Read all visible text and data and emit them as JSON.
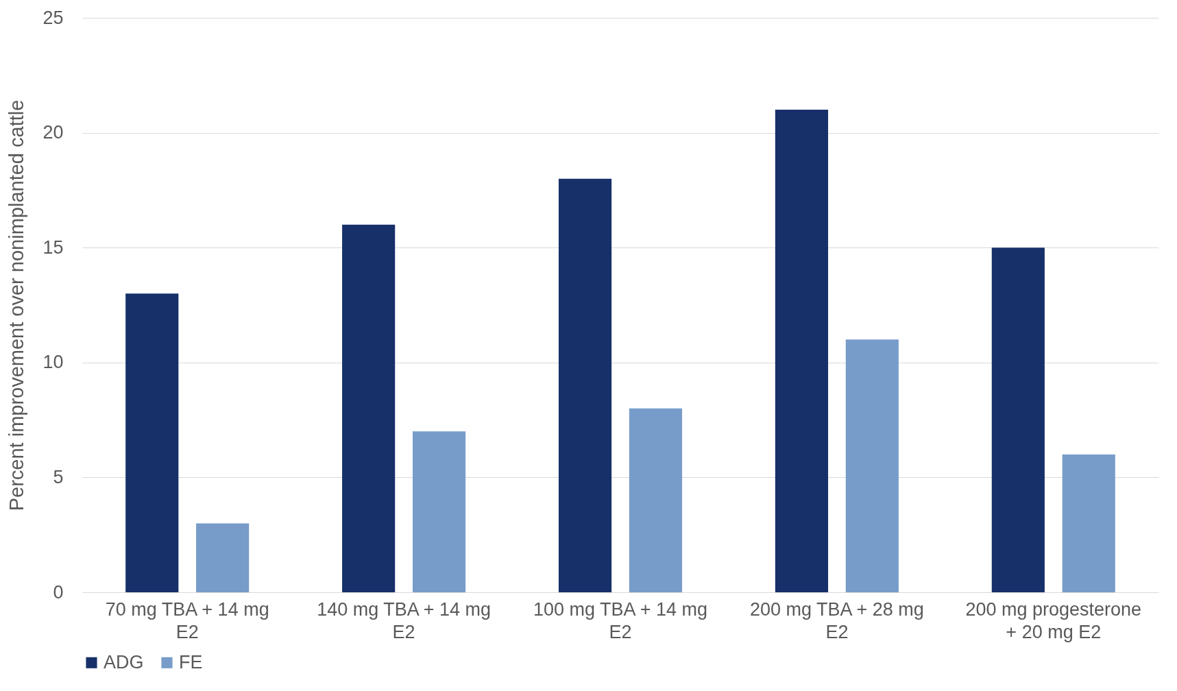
{
  "chart_data": {
    "type": "bar",
    "ylabel": "Percent improvement over nonimplanted cattle",
    "categories": [
      "70 mg TBA + 14 mg E2",
      "140 mg TBA  + 14 mg E2",
      "100 mg TBA + 14 mg E2",
      "200 mg TBA + 28 mg E2",
      "200 mg progesterone + 20 mg E2"
    ],
    "series": [
      {
        "name": "ADG",
        "color": "#17306a",
        "values": [
          13,
          16,
          18,
          21,
          15
        ]
      },
      {
        "name": "FE",
        "color": "#779cc9",
        "values": [
          3,
          7,
          8,
          11,
          6
        ]
      }
    ],
    "ylim": [
      0,
      25
    ],
    "yticks": [
      0,
      5,
      10,
      15,
      20,
      25
    ],
    "grid": "y",
    "legend": "bottom"
  }
}
